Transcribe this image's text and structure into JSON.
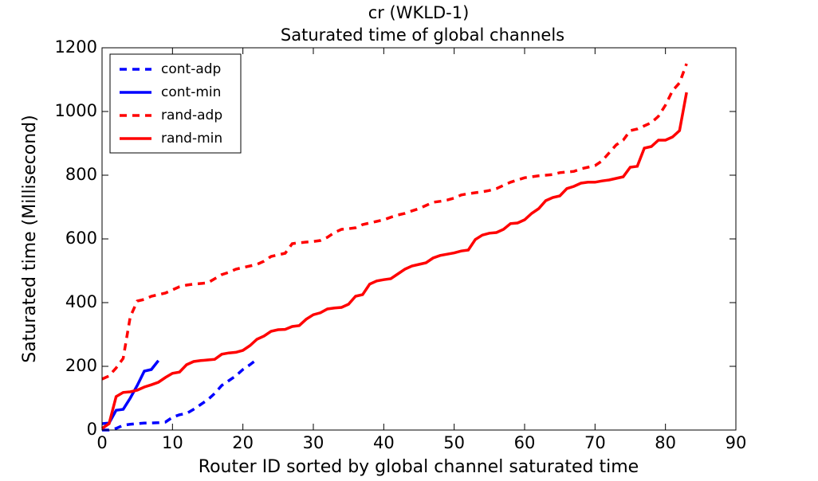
{
  "chart_data": {
    "type": "line",
    "title": "cr (WKLD-1)",
    "subtitle": "Saturated time of global channels",
    "x_label": "Router ID sorted by global channel saturated time",
    "y_label": "Saturated time (Millisecond)",
    "xlim": [
      0,
      90
    ],
    "xticks": [
      0,
      10,
      20,
      30,
      40,
      50,
      60,
      70,
      80,
      90
    ],
    "ylim": [
      0,
      1200
    ],
    "yticks": [
      0,
      200,
      400,
      600,
      800,
      1000,
      1200
    ],
    "legend": "upper left",
    "series": [
      {
        "name": "cont-adp",
        "color": "#0000ff",
        "linestyle": "dashed",
        "x": [
          0,
          1,
          2,
          3,
          4,
          5,
          6,
          7,
          8,
          9,
          10,
          11,
          12,
          13,
          14,
          15,
          16,
          17,
          18,
          19,
          20,
          21,
          22
        ],
        "values": [
          0,
          0,
          5,
          15,
          18,
          20,
          22,
          22,
          23,
          25,
          40,
          48,
          52,
          65,
          80,
          95,
          115,
          140,
          155,
          170,
          190,
          205,
          222
        ]
      },
      {
        "name": "cont-min",
        "color": "#0000ff",
        "linestyle": "solid",
        "x": [
          0,
          1,
          2,
          3,
          4,
          5,
          6,
          7,
          8
        ],
        "values": [
          20,
          22,
          62,
          65,
          100,
          140,
          185,
          190,
          218
        ]
      },
      {
        "name": "rand-adp",
        "color": "#ff0000",
        "linestyle": "dashed",
        "x": [
          0,
          1,
          2,
          3,
          4,
          5,
          6,
          7,
          8,
          9,
          10,
          11,
          12,
          13,
          14,
          15,
          16,
          17,
          18,
          19,
          20,
          21,
          22,
          23,
          24,
          25,
          26,
          27,
          28,
          29,
          30,
          31,
          32,
          33,
          34,
          35,
          36,
          37,
          38,
          39,
          40,
          41,
          42,
          43,
          44,
          45,
          46,
          47,
          48,
          49,
          50,
          51,
          52,
          53,
          54,
          55,
          56,
          57,
          58,
          59,
          60,
          61,
          62,
          63,
          64,
          65,
          66,
          67,
          68,
          69,
          70,
          71,
          72,
          73,
          74,
          75,
          76,
          77,
          78,
          79,
          80,
          81,
          82,
          83
        ],
        "values": [
          160,
          170,
          195,
          225,
          355,
          405,
          410,
          420,
          425,
          430,
          440,
          450,
          455,
          458,
          460,
          462,
          475,
          488,
          495,
          505,
          510,
          515,
          520,
          530,
          545,
          550,
          555,
          585,
          588,
          590,
          592,
          595,
          605,
          620,
          630,
          632,
          635,
          645,
          650,
          655,
          660,
          668,
          675,
          680,
          688,
          695,
          705,
          715,
          718,
          722,
          728,
          738,
          742,
          745,
          748,
          752,
          758,
          768,
          778,
          785,
          792,
          795,
          798,
          800,
          802,
          808,
          810,
          812,
          820,
          825,
          830,
          845,
          870,
          895,
          910,
          940,
          945,
          955,
          965,
          985,
          1020,
          1065,
          1090,
          1150
        ]
      },
      {
        "name": "rand-min",
        "color": "#ff0000",
        "linestyle": "solid",
        "x": [
          0,
          1,
          2,
          3,
          4,
          5,
          6,
          7,
          8,
          9,
          10,
          11,
          12,
          13,
          14,
          15,
          16,
          17,
          18,
          19,
          20,
          21,
          22,
          23,
          24,
          25,
          26,
          27,
          28,
          29,
          30,
          31,
          32,
          33,
          34,
          35,
          36,
          37,
          38,
          39,
          40,
          41,
          42,
          43,
          44,
          45,
          46,
          47,
          48,
          49,
          50,
          51,
          52,
          53,
          54,
          55,
          56,
          57,
          58,
          59,
          60,
          61,
          62,
          63,
          64,
          65,
          66,
          67,
          68,
          69,
          70,
          71,
          72,
          73,
          74,
          75,
          76,
          77,
          78,
          79,
          80,
          81,
          82,
          83
        ],
        "values": [
          5,
          20,
          105,
          118,
          120,
          125,
          135,
          142,
          150,
          165,
          178,
          182,
          205,
          215,
          218,
          220,
          222,
          238,
          242,
          244,
          250,
          265,
          285,
          295,
          310,
          315,
          316,
          325,
          328,
          348,
          362,
          368,
          380,
          383,
          385,
          395,
          420,
          425,
          458,
          468,
          472,
          475,
          490,
          505,
          515,
          520,
          525,
          540,
          548,
          552,
          556,
          562,
          565,
          598,
          612,
          618,
          620,
          630,
          648,
          650,
          660,
          680,
          695,
          720,
          730,
          735,
          758,
          765,
          775,
          778,
          778,
          782,
          785,
          790,
          795,
          825,
          828,
          885,
          890,
          910,
          910,
          920,
          940,
          1060
        ]
      }
    ]
  }
}
